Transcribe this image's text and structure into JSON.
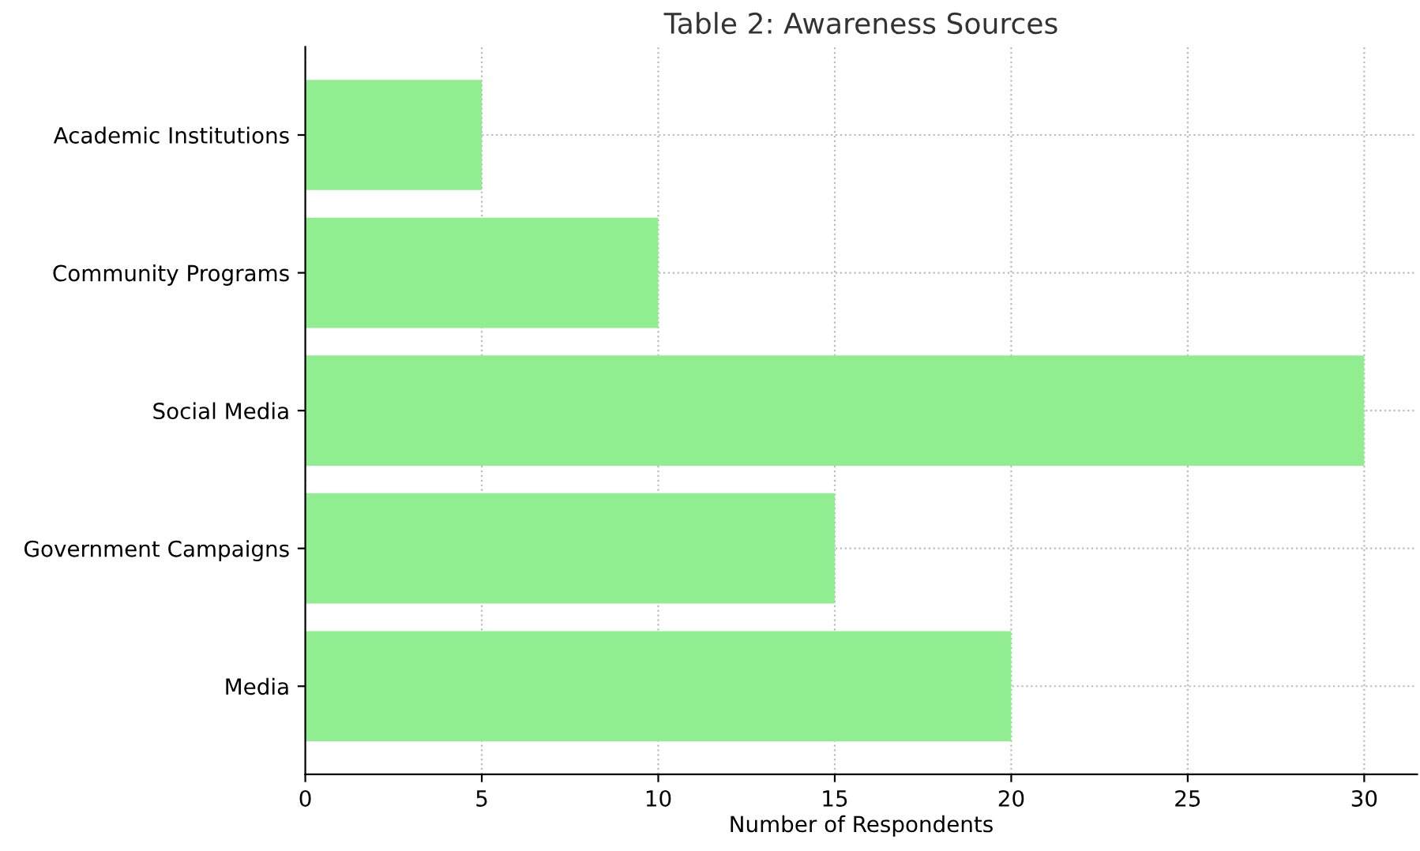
{
  "chart_data": {
    "type": "bar",
    "orientation": "horizontal",
    "title": "Table 2: Awareness Sources",
    "xlabel": "Number of Respondents",
    "categories": [
      "Academic Institutions",
      "Community Programs",
      "Social Media",
      "Government Campaigns",
      "Media"
    ],
    "values": [
      5,
      10,
      30,
      15,
      20
    ],
    "color": "#90ee90",
    "xlim": [
      0,
      31.5
    ],
    "xticks": [
      0,
      5,
      10,
      15,
      20,
      25,
      30
    ],
    "grid": true
  }
}
